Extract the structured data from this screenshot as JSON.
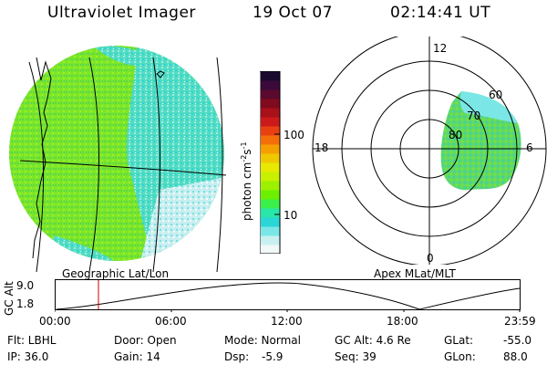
{
  "header": {
    "title": "Ultraviolet Imager",
    "date": "19 Oct 07",
    "time": "02:14:41 UT"
  },
  "left_panel": {
    "caption": "Geographic Lat/Lon"
  },
  "right_panel": {
    "caption": "Apex MLat/MLT",
    "mlt_labels": {
      "top": "12",
      "left": "18",
      "right": "6",
      "bottom": "0"
    },
    "lat_labels": [
      "60",
      "70",
      "80"
    ]
  },
  "colorbar": {
    "unit_label": "photon cm",
    "unit_sup1": "-2",
    "unit_s": "s",
    "unit_sup2": "-1",
    "tick_labels": [
      "100",
      "10"
    ],
    "tick_values": [
      100,
      10
    ],
    "colors": [
      "#1a0a2e",
      "#3a0a3a",
      "#5a0a2e",
      "#800a1e",
      "#a8101a",
      "#cc1a1a",
      "#e84010",
      "#f46e0a",
      "#f5a000",
      "#f0c800",
      "#e8e800",
      "#c8f000",
      "#9cf000",
      "#6cf000",
      "#3cf04a",
      "#28e6a8",
      "#2ad6d6",
      "#7ae6e6",
      "#c8f0f0",
      "#f0f8f8"
    ]
  },
  "altitude_strip": {
    "axis_label": "GC Alt",
    "y_ticks": [
      "9.0",
      "1.8"
    ],
    "x_ticks": [
      "00:00",
      "06:00",
      "12:00",
      "18:00",
      "23:59"
    ],
    "marker_color": "#cc0000"
  },
  "info": {
    "flt": "Flt: LBHL",
    "ip": "IP: 36.0",
    "door": "Door: Open",
    "gain": "Gain: 14",
    "mode": "Mode: Normal",
    "dsp_label": "Dsp:",
    "dsp_value": "-5.9",
    "gc_alt": "GC Alt: 4.6 Re",
    "seq": "Seq: 39",
    "glat_label": "GLat:",
    "glat_value": "-55.0",
    "glon_label": "GLon:",
    "glon_value": "88.0"
  }
}
